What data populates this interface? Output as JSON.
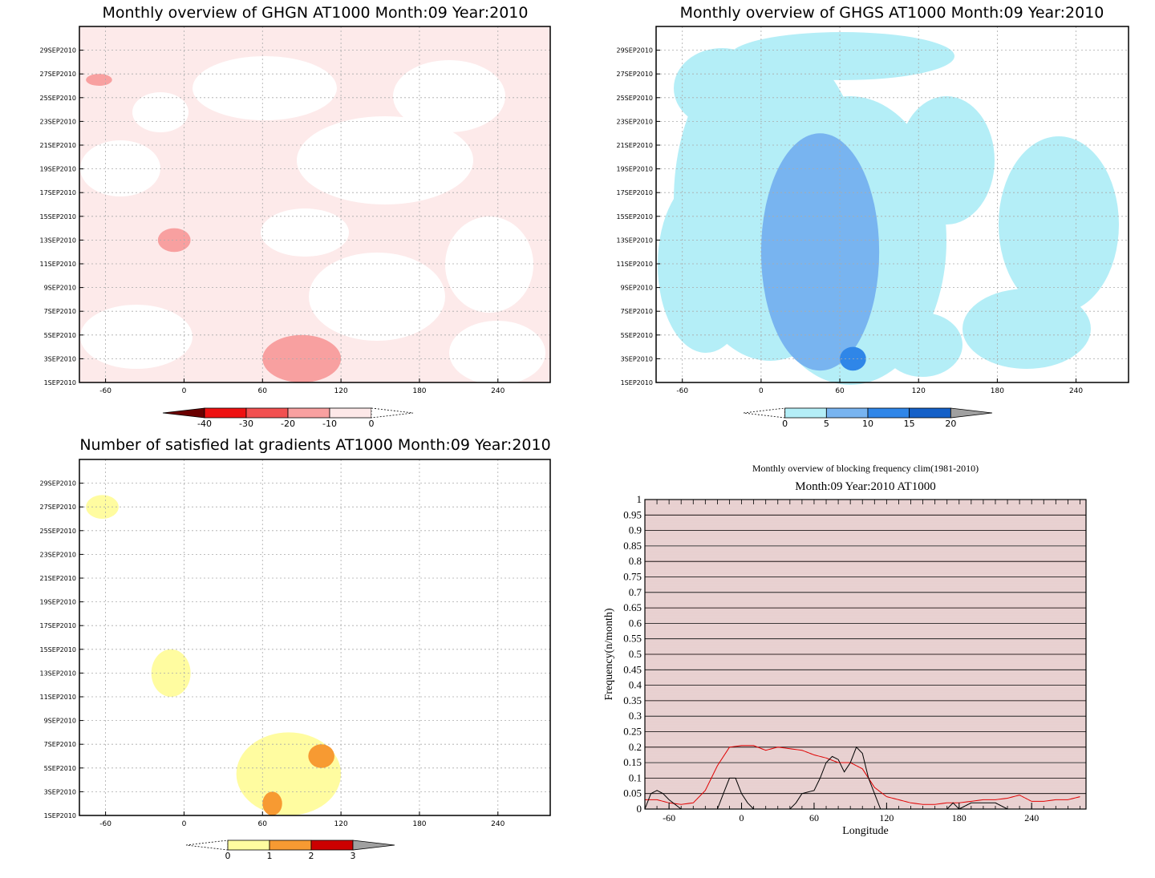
{
  "chart_data": [
    {
      "type": "heatmap",
      "title": "Monthly overview of GHGN AT1000 Month:09 Year:2010",
      "x_ticks": [
        "-60",
        "0",
        "60",
        "120",
        "180",
        "240"
      ],
      "x_tick_values": [
        -60,
        0,
        60,
        120,
        180,
        240
      ],
      "xlim": [
        -80,
        280
      ],
      "y_ticks": [
        "1SEP2010",
        "3SEP2010",
        "5SEP2010",
        "7SEP2010",
        "9SEP2010",
        "11SEP2010",
        "13SEP2010",
        "15SEP2010",
        "17SEP2010",
        "19SEP2010",
        "21SEP2010",
        "23SEP2010",
        "25SEP2010",
        "27SEP2010",
        "29SEP2010"
      ],
      "colorbar": {
        "labels": [
          "-40",
          "-30",
          "-20",
          "-10",
          "0"
        ],
        "values": [
          -40,
          -30,
          -20,
          -10,
          0
        ],
        "colors": [
          "#6b0000",
          "#ee1111",
          "#f25050",
          "#f8a0a0",
          "#fde8e8"
        ],
        "extend": "both"
      },
      "background_color": "#fdeaea",
      "regions": [
        {
          "level": "-10 to 0",
          "color": "#ffffff",
          "description": "white gaps"
        },
        {
          "level": "-20 to -10",
          "color": "#f8a0a0",
          "lon": [
            60,
            120
          ],
          "dates": [
            "1SEP2010",
            "5SEP2010"
          ]
        },
        {
          "level": "-20 to -10",
          "color": "#f8a0a0",
          "lon": [
            -20,
            5
          ],
          "dates": [
            "12SEP2010",
            "14SEP2010"
          ]
        },
        {
          "level": "-20 to -10",
          "color": "#f8a0a0",
          "lon": [
            -75,
            -55
          ],
          "dates": [
            "26SEP2010",
            "27SEP2010"
          ]
        }
      ],
      "grid": true
    },
    {
      "type": "heatmap",
      "title": "Monthly overview of GHGS AT1000 Month:09 Year:2010",
      "x_ticks": [
        "-60",
        "0",
        "60",
        "120",
        "180",
        "240"
      ],
      "x_tick_values": [
        -60,
        0,
        60,
        120,
        180,
        240
      ],
      "xlim": [
        -80,
        280
      ],
      "y_ticks": [
        "1SEP2010",
        "3SEP2010",
        "5SEP2010",
        "7SEP2010",
        "9SEP2010",
        "11SEP2010",
        "13SEP2010",
        "15SEP2010",
        "17SEP2010",
        "19SEP2010",
        "21SEP2010",
        "23SEP2010",
        "25SEP2010",
        "27SEP2010",
        "29SEP2010"
      ],
      "colorbar": {
        "labels": [
          "0",
          "5",
          "10",
          "15",
          "20"
        ],
        "values": [
          0,
          5,
          10,
          15,
          20
        ],
        "colors": [
          "#b4eef7",
          "#78b4f0",
          "#2f86e8",
          "#1460c8",
          "#a0a0a0"
        ],
        "extend": "both"
      },
      "regions": [
        {
          "level": "0 to 5",
          "color": "#b4eef7",
          "description": "broad coverage"
        },
        {
          "level": "5 to 10",
          "color": "#78b4f0",
          "lon": [
            0,
            90
          ],
          "dates": [
            "2SEP2010",
            "22SEP2010"
          ]
        },
        {
          "level": "10 to 15",
          "color": "#2f86e8",
          "lon": [
            60,
            80
          ],
          "dates": [
            "2SEP2010",
            "4SEP2010"
          ]
        }
      ],
      "grid": true
    },
    {
      "type": "heatmap",
      "title": "Number of satisfied lat gradients AT1000 Month:09 Year:2010",
      "x_ticks": [
        "-60",
        "0",
        "60",
        "120",
        "180",
        "240"
      ],
      "x_tick_values": [
        -60,
        0,
        60,
        120,
        180,
        240
      ],
      "xlim": [
        -80,
        280
      ],
      "y_ticks": [
        "1SEP2010",
        "3SEP2010",
        "5SEP2010",
        "7SEP2010",
        "9SEP2010",
        "11SEP2010",
        "13SEP2010",
        "15SEP2010",
        "17SEP2010",
        "19SEP2010",
        "21SEP2010",
        "23SEP2010",
        "25SEP2010",
        "27SEP2010",
        "29SEP2010"
      ],
      "colorbar": {
        "labels": [
          "0",
          "1",
          "2",
          "3"
        ],
        "values": [
          0,
          1,
          2,
          3
        ],
        "colors": [
          "#fffca0",
          "#f79a32",
          "#cc0000",
          "#a0a0a0"
        ],
        "extend": "both"
      },
      "regions": [
        {
          "level": "1",
          "color": "#fffca0",
          "lon": [
            -75,
            -50
          ],
          "dates": [
            "26SEP2010",
            "28SEP2010"
          ]
        },
        {
          "level": "1",
          "color": "#fffca0",
          "lon": [
            -25,
            5
          ],
          "dates": [
            "11SEP2010",
            "15SEP2010"
          ]
        },
        {
          "level": "1",
          "color": "#fffca0",
          "lon": [
            40,
            120
          ],
          "dates": [
            "1SEP2010",
            "8SEP2010"
          ]
        },
        {
          "level": "2",
          "color": "#f79a32",
          "lon": [
            60,
            75
          ],
          "dates": [
            "1SEP2010",
            "3SEP2010"
          ]
        },
        {
          "level": "2",
          "color": "#f79a32",
          "lon": [
            95,
            115
          ],
          "dates": [
            "5SEP2010",
            "7SEP2010"
          ]
        }
      ],
      "grid": true
    },
    {
      "type": "line",
      "title": "Monthly overview of blocking frequency clim(1981-2010)",
      "subtitle": "Month:09 Year:2010  AT1000",
      "xlabel": "Longitude",
      "ylabel": "Frequency(n/month)",
      "x_ticks": [
        "-60",
        "0",
        "60",
        "120",
        "180",
        "240"
      ],
      "x_tick_values": [
        -60,
        0,
        60,
        120,
        180,
        240
      ],
      "y_ticks": [
        "0",
        "0.05",
        "0.1",
        "0.15",
        "0.2",
        "0.25",
        "0.3",
        "0.35",
        "0.4",
        "0.45",
        "0.5",
        "0.55",
        "0.6",
        "0.65",
        "0.7",
        "0.75",
        "0.8",
        "0.85",
        "0.9",
        "0.95",
        "1"
      ],
      "xlim": [
        -80,
        285
      ],
      "ylim": [
        0,
        1
      ],
      "background": "hatched-red",
      "series": [
        {
          "color": "#e00000",
          "x": [
            -80,
            -70,
            -60,
            -50,
            -40,
            -30,
            -20,
            -10,
            0,
            10,
            20,
            30,
            40,
            50,
            60,
            70,
            80,
            90,
            100,
            110,
            120,
            130,
            140,
            150,
            160,
            170,
            180,
            190,
            200,
            210,
            220,
            230,
            240,
            250,
            260,
            270,
            280
          ],
          "y": [
            0.03,
            0.03,
            0.02,
            0.015,
            0.02,
            0.06,
            0.14,
            0.2,
            0.205,
            0.205,
            0.19,
            0.2,
            0.195,
            0.19,
            0.175,
            0.165,
            0.15,
            0.15,
            0.13,
            0.07,
            0.04,
            0.03,
            0.02,
            0.015,
            0.015,
            0.02,
            0.02,
            0.025,
            0.03,
            0.03,
            0.035,
            0.045,
            0.025,
            0.025,
            0.03,
            0.03,
            0.04
          ]
        },
        {
          "color": "#000000",
          "x": [
            -80,
            -75,
            -70,
            -65,
            -60,
            -50,
            -30,
            -20,
            -15,
            -10,
            -5,
            0,
            5,
            10,
            20,
            30,
            40,
            45,
            50,
            60,
            65,
            70,
            75,
            80,
            85,
            90,
            95,
            100,
            105,
            110,
            115,
            120,
            130,
            150,
            160,
            170,
            175,
            180,
            190,
            200,
            210,
            220,
            240,
            250,
            260,
            270,
            280
          ],
          "y": [
            0,
            0.05,
            0.06,
            0.05,
            0.03,
            0,
            0,
            0,
            0.05,
            0.1,
            0.1,
            0.05,
            0.02,
            0,
            0,
            0,
            0,
            0.02,
            0.05,
            0.06,
            0.1,
            0.15,
            0.17,
            0.16,
            0.12,
            0.15,
            0.2,
            0.18,
            0.1,
            0.05,
            0,
            0,
            0,
            0,
            0,
            0,
            0.02,
            0,
            0.02,
            0.02,
            0.02,
            0,
            0,
            0,
            0,
            0,
            0
          ]
        }
      ],
      "grid": true
    }
  ]
}
